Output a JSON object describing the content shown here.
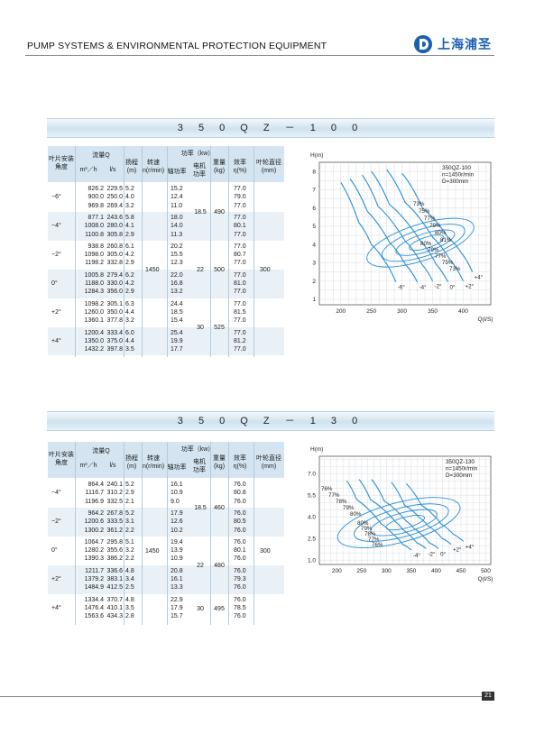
{
  "header": {
    "title": "PUMP SYSTEMS & ENVIRONMENTAL PROTECTION EQUIPMENT",
    "logo_text": "上海浦圣"
  },
  "page_number": "21",
  "table_headers": {
    "blade_angle": "叶片安装角度",
    "flow": "流量Q",
    "flow_m3h": "m³／h",
    "flow_ls": "l/s",
    "head": "扬程(m)",
    "speed": "转速n(r/min)",
    "power": "功率（kw）",
    "shaft_power": "轴功率",
    "motor_power": "电机功率",
    "weight": "重量(kg)",
    "efficiency": "效率 η(%)",
    "impeller_dia": "叶轮直径(mm)"
  },
  "sections": [
    {
      "title": "3 5 0 Q Z － 1 0 0",
      "speed": "1450",
      "impeller_dia": "300",
      "groups": [
        {
          "angle": "−6°",
          "rows": [
            [
              "826.2",
              "229.5",
              "5.2",
              "15.2",
              "77.0"
            ],
            [
              "900.0",
              "250.0",
              "4.0",
              "12.4",
              "79.0"
            ],
            [
              "969.8",
              "269.4",
              "3.2",
              "11.0",
              "77.0"
            ]
          ],
          "motor": "18.5",
          "weight": "490"
        },
        {
          "angle": "−4°",
          "rows": [
            [
              "877.1",
              "243.6",
              "5.8",
              "18.0",
              "77.0"
            ],
            [
              "1008.0",
              "280.0",
              "4.1",
              "14.0",
              "80.1"
            ],
            [
              "1100.8",
              "305.8",
              "2.9",
              "11.3",
              "77.0"
            ]
          ],
          "motor": "",
          "weight": ""
        },
        {
          "angle": "−2°",
          "rows": [
            [
              "938.8",
              "260.8",
              "6.1",
              "20.2",
              "77.0"
            ],
            [
              "1098.0",
              "305.0",
              "4.2",
              "15.5",
              "80.7"
            ],
            [
              "1198.2",
              "332.8",
              "2.9",
              "12.3",
              "77.0"
            ]
          ],
          "motor": "22",
          "weight": "500"
        },
        {
          "angle": "0°",
          "rows": [
            [
              "1005.8",
              "279.4",
              "6.2",
              "22.0",
              "77.0"
            ],
            [
              "1188.0",
              "330.0",
              "4.2",
              "16.8",
              "81.0"
            ],
            [
              "1284.3",
              "356.0",
              "2.9",
              "13.2",
              "77.0"
            ]
          ],
          "motor": "",
          "weight": ""
        },
        {
          "angle": "+2°",
          "rows": [
            [
              "1098.2",
              "305.1",
              "6.3",
              "24.4",
              "77.0"
            ],
            [
              "1260.0",
              "350.0",
              "4.4",
              "18.5",
              "81.5"
            ],
            [
              "1360.1",
              "377.8",
              "3.2",
              "15.4",
              "77.0"
            ]
          ],
          "motor": "30",
          "weight": "525"
        },
        {
          "angle": "+4°",
          "rows": [
            [
              "1200.4",
              "333.4",
              "6.0",
              "25.4",
              "77.0"
            ],
            [
              "1350.0",
              "375.0",
              "4.4",
              "19.9",
              "81.2"
            ],
            [
              "1432.2",
              "397.8",
              "3.5",
              "17.7",
              "77.0"
            ]
          ],
          "motor": "",
          "weight": ""
        }
      ]
    },
    {
      "title": "3 5 0 Q Z － 1 3 0",
      "speed": "1450",
      "impeller_dia": "300",
      "groups": [
        {
          "angle": "−4°",
          "rows": [
            [
              "864.4",
              "240.1",
              "5.2",
              "16.1",
              "76.0"
            ],
            [
              "1116.7",
              "310.2",
              "2.9",
              "10.9",
              "80.8"
            ],
            [
              "1196.9",
              "332.5",
              "2.1",
              "9.0",
              "76.0"
            ]
          ],
          "motor": "18.5",
          "weight": "460"
        },
        {
          "angle": "−2°",
          "rows": [
            [
              "964.2",
              "267.8",
              "5.2",
              "17.9",
              "76.0"
            ],
            [
              "1200.6",
              "333.5",
              "3.1",
              "12.6",
              "80.5"
            ],
            [
              "1300.2",
              "361.2",
              "2.2",
              "10.2",
              "76.0"
            ]
          ],
          "motor": "",
          "weight": ""
        },
        {
          "angle": "0°",
          "rows": [
            [
              "1064.7",
              "295.8",
              "5.1",
              "19.4",
              "76.0"
            ],
            [
              "1280.2",
              "355.6",
              "3.2",
              "13.9",
              "80.1"
            ],
            [
              "1390.3",
              "386.2",
              "2.2",
              "10.9",
              "76.0"
            ]
          ],
          "motor": "22",
          "weight": "480"
        },
        {
          "angle": "+2°",
          "rows": [
            [
              "1211.7",
              "336.6",
              "4.8",
              "20.8",
              "76.0"
            ],
            [
              "1379.2",
              "383.1",
              "3.4",
              "16.1",
              "79.3"
            ],
            [
              "1484.9",
              "412.5",
              "2.5",
              "13.3",
              "76.0"
            ]
          ],
          "motor": "",
          "weight": ""
        },
        {
          "angle": "+4°",
          "rows": [
            [
              "1334.4",
              "370.7",
              "4.8",
              "22.9",
              "76.0"
            ],
            [
              "1476.4",
              "410.1",
              "3.5",
              "17.9",
              "78.5"
            ],
            [
              "1563.6",
              "434.3",
              "2.8",
              "15.7",
              "76.0"
            ]
          ],
          "motor": "30",
          "weight": "495"
        }
      ]
    }
  ],
  "chart_data": [
    {
      "type": "line",
      "ylabel": "H(m)",
      "xlabel": "Q(l/S)",
      "legend": [
        "350QZ-100",
        "n=1450r/min",
        "D=300mm"
      ],
      "xticks": [
        "200",
        "250",
        "300",
        "350",
        "400"
      ],
      "yticks": [
        "1",
        "2",
        "3",
        "4",
        "5",
        "6",
        "7",
        "8"
      ],
      "xlim": [
        165,
        445
      ],
      "ylim": [
        0.7,
        8.5
      ],
      "series": [
        {
          "name": "-6°",
          "x": [
            200,
            229.5,
            250,
            269.4,
            290
          ],
          "y": [
            7.4,
            5.2,
            4.0,
            3.2,
            1.95
          ]
        },
        {
          "name": "-4°",
          "x": [
            215,
            243.6,
            280,
            305.8,
            325
          ],
          "y": [
            7.6,
            5.8,
            4.1,
            2.9,
            1.95
          ]
        },
        {
          "name": "-2°",
          "x": [
            235,
            260.8,
            305,
            332.8,
            350
          ],
          "y": [
            7.8,
            6.1,
            4.2,
            2.9,
            2.0
          ]
        },
        {
          "name": "0°",
          "x": [
            250,
            279.4,
            330,
            356,
            375
          ],
          "y": [
            8.0,
            6.2,
            4.2,
            2.9,
            1.95
          ]
        },
        {
          "name": "+2°",
          "x": [
            275,
            305.1,
            350,
            377.8,
            400
          ],
          "y": [
            8.1,
            6.3,
            4.4,
            3.2,
            2.0
          ]
        },
        {
          "name": "+4°",
          "x": [
            300,
            333.4,
            375,
            397.8,
            415
          ],
          "y": [
            7.9,
            6.0,
            4.4,
            3.5,
            2.5
          ]
        }
      ],
      "efficiency_labels": [
        "73%",
        "75%",
        "77%",
        "79%",
        "80%",
        "81%",
        "80%",
        "79%",
        "77%",
        "75%",
        "73%"
      ],
      "curve_labels": [
        "-6°",
        "-4°",
        "-2°",
        "0°",
        "+2°",
        "+4°"
      ]
    },
    {
      "type": "line",
      "ylabel": "H(m)",
      "xlabel": "Q(l/S)",
      "legend": [
        "350QZ-130",
        "n=1450r/min",
        "D=300mm"
      ],
      "xticks": [
        "200",
        "250",
        "300",
        "350",
        "400",
        "450",
        "500"
      ],
      "yticks": [
        "1.0",
        "2.5",
        "4.0",
        "5.5",
        "7.0"
      ],
      "xlim": [
        165,
        510
      ],
      "ylim": [
        0.7,
        8.2
      ],
      "series": [
        {
          "name": "-4°",
          "x": [
            220,
            240.1,
            290,
            310.2,
            332.5,
            350
          ],
          "y": [
            6.5,
            5.2,
            3.5,
            2.9,
            2.1,
            1.7
          ]
        },
        {
          "name": "-2°",
          "x": [
            245,
            267.8,
            320,
            333.5,
            361.2,
            380
          ],
          "y": [
            6.6,
            5.2,
            3.6,
            3.1,
            2.2,
            1.8
          ]
        },
        {
          "name": "0°",
          "x": [
            270,
            295.8,
            340,
            355.6,
            386.2,
            405
          ],
          "y": [
            6.6,
            5.1,
            3.7,
            3.2,
            2.2,
            1.8
          ]
        },
        {
          "name": "+2°",
          "x": [
            310,
            336.6,
            365,
            383.1,
            412.5,
            430
          ],
          "y": [
            6.4,
            4.8,
            4.0,
            3.4,
            2.5,
            2.1
          ]
        },
        {
          "name": "+4°",
          "x": [
            340,
            370.7,
            395,
            410.1,
            434.3,
            455
          ],
          "y": [
            6.3,
            4.8,
            4.1,
            3.5,
            2.8,
            2.3
          ]
        }
      ],
      "efficiency_labels": [
        "76%",
        "77%",
        "78%",
        "79%",
        "80%",
        "80%",
        "79%",
        "78%",
        "77%",
        "76%"
      ],
      "curve_labels": [
        "-4°",
        "-2°",
        "0°",
        "+2°",
        "+4°"
      ]
    }
  ]
}
